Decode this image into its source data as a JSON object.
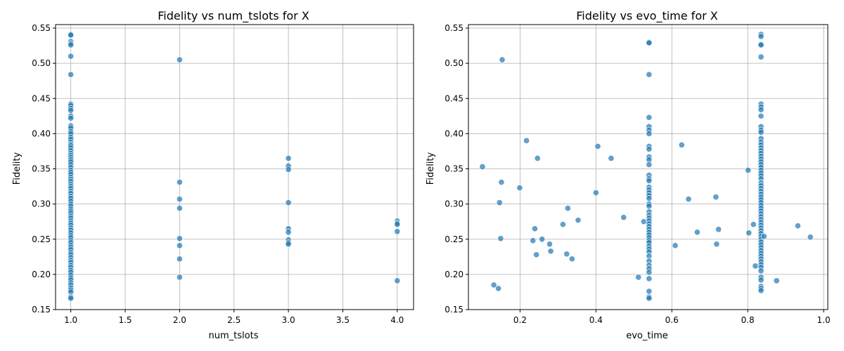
{
  "chart_data": [
    {
      "type": "scatter",
      "title": "Fidelity vs num_tslots for X",
      "xlabel": "num_tslots",
      "ylabel": "Fidelity",
      "xlim": [
        0.86,
        4.15
      ],
      "ylim": [
        0.15,
        0.555
      ],
      "xticks": [
        "1.0",
        "1.5",
        "2.0",
        "2.5",
        "3.0",
        "3.5",
        "4.0"
      ],
      "yticks": [
        "0.15",
        "0.20",
        "0.25",
        "0.30",
        "0.35",
        "0.40",
        "0.45",
        "0.50",
        "0.55"
      ],
      "grid": true,
      "color": "#1f77b4",
      "points": [
        [
          1,
          0.541
        ],
        [
          1,
          0.54
        ],
        [
          1,
          0.531
        ],
        [
          1,
          0.528
        ],
        [
          1,
          0.526
        ],
        [
          1,
          0.51
        ],
        [
          1,
          0.484
        ],
        [
          1,
          0.442
        ],
        [
          1,
          0.44
        ],
        [
          1,
          0.436
        ],
        [
          1,
          0.433
        ],
        [
          1,
          0.425
        ],
        [
          1,
          0.422
        ],
        [
          1,
          0.411
        ],
        [
          1,
          0.408
        ],
        [
          1,
          0.403
        ],
        [
          1,
          0.4
        ],
        [
          1,
          0.395
        ],
        [
          1,
          0.392
        ],
        [
          1,
          0.388
        ],
        [
          1,
          0.385
        ],
        [
          1,
          0.383
        ],
        [
          1,
          0.38
        ],
        [
          1,
          0.376
        ],
        [
          1,
          0.372
        ],
        [
          1,
          0.369
        ],
        [
          1,
          0.366
        ],
        [
          1,
          0.363
        ],
        [
          1,
          0.36
        ],
        [
          1,
          0.356
        ],
        [
          1,
          0.352
        ],
        [
          1,
          0.348
        ],
        [
          1,
          0.345
        ],
        [
          1,
          0.342
        ],
        [
          1,
          0.338
        ],
        [
          1,
          0.335
        ],
        [
          1,
          0.332
        ],
        [
          1,
          0.328
        ],
        [
          1,
          0.325
        ],
        [
          1,
          0.322
        ],
        [
          1,
          0.318
        ],
        [
          1,
          0.315
        ],
        [
          1,
          0.311
        ],
        [
          1,
          0.308
        ],
        [
          1,
          0.304
        ],
        [
          1,
          0.3
        ],
        [
          1,
          0.297
        ],
        [
          1,
          0.293
        ],
        [
          1,
          0.29
        ],
        [
          1,
          0.287
        ],
        [
          1,
          0.283
        ],
        [
          1,
          0.28
        ],
        [
          1,
          0.276
        ],
        [
          1,
          0.273
        ],
        [
          1,
          0.27
        ],
        [
          1,
          0.266
        ],
        [
          1,
          0.263
        ],
        [
          1,
          0.259
        ],
        [
          1,
          0.255
        ],
        [
          1,
          0.252
        ],
        [
          1,
          0.248
        ],
        [
          1,
          0.245
        ],
        [
          1,
          0.241
        ],
        [
          1,
          0.238
        ],
        [
          1,
          0.235
        ],
        [
          1,
          0.231
        ],
        [
          1,
          0.228
        ],
        [
          1,
          0.224
        ],
        [
          1,
          0.22
        ],
        [
          1,
          0.217
        ],
        [
          1,
          0.213
        ],
        [
          1,
          0.21
        ],
        [
          1,
          0.206
        ],
        [
          1,
          0.203
        ],
        [
          1,
          0.199
        ],
        [
          1,
          0.195
        ],
        [
          1,
          0.192
        ],
        [
          1,
          0.188
        ],
        [
          1,
          0.185
        ],
        [
          1,
          0.181
        ],
        [
          1,
          0.178
        ],
        [
          1,
          0.175
        ],
        [
          1,
          0.168
        ],
        [
          1,
          0.166
        ],
        [
          2,
          0.505
        ],
        [
          2,
          0.331
        ],
        [
          2,
          0.307
        ],
        [
          2,
          0.294
        ],
        [
          2,
          0.251
        ],
        [
          2,
          0.241
        ],
        [
          2,
          0.222
        ],
        [
          2,
          0.196
        ],
        [
          3,
          0.365
        ],
        [
          3,
          0.354
        ],
        [
          3,
          0.349
        ],
        [
          3,
          0.302
        ],
        [
          3,
          0.265
        ],
        [
          3,
          0.26
        ],
        [
          3,
          0.249
        ],
        [
          3,
          0.245
        ],
        [
          3,
          0.243
        ],
        [
          4,
          0.276
        ],
        [
          4,
          0.273
        ],
        [
          4,
          0.271
        ],
        [
          4,
          0.261
        ],
        [
          4,
          0.191
        ]
      ]
    },
    {
      "type": "scatter",
      "title": "Fidelity vs evo_time for X",
      "xlabel": "evo_time",
      "ylabel": "Fidelity",
      "xlim": [
        0.064,
        1.011
      ],
      "ylim": [
        0.15,
        0.555
      ],
      "xticks": [
        "0.2",
        "0.4",
        "0.6",
        "0.8",
        "1.0"
      ],
      "yticks": [
        "0.15",
        "0.20",
        "0.25",
        "0.30",
        "0.35",
        "0.40",
        "0.45",
        "0.50",
        "0.55"
      ],
      "grid": true,
      "color": "#1f77b4",
      "points": [
        [
          0.101,
          0.353
        ],
        [
          0.131,
          0.185
        ],
        [
          0.143,
          0.18
        ],
        [
          0.146,
          0.302
        ],
        [
          0.149,
          0.251
        ],
        [
          0.151,
          0.331
        ],
        [
          0.153,
          0.505
        ],
        [
          0.199,
          0.323
        ],
        [
          0.217,
          0.39
        ],
        [
          0.234,
          0.248
        ],
        [
          0.239,
          0.265
        ],
        [
          0.243,
          0.228
        ],
        [
          0.246,
          0.365
        ],
        [
          0.258,
          0.25
        ],
        [
          0.278,
          0.243
        ],
        [
          0.281,
          0.233
        ],
        [
          0.313,
          0.271
        ],
        [
          0.323,
          0.229
        ],
        [
          0.326,
          0.294
        ],
        [
          0.337,
          0.222
        ],
        [
          0.353,
          0.277
        ],
        [
          0.4,
          0.316
        ],
        [
          0.405,
          0.382
        ],
        [
          0.44,
          0.365
        ],
        [
          0.473,
          0.281
        ],
        [
          0.512,
          0.196
        ],
        [
          0.526,
          0.275
        ],
        [
          0.54,
          0.53
        ],
        [
          0.54,
          0.529
        ],
        [
          0.54,
          0.484
        ],
        [
          0.54,
          0.423
        ],
        [
          0.54,
          0.41
        ],
        [
          0.54,
          0.405
        ],
        [
          0.54,
          0.4
        ],
        [
          0.54,
          0.382
        ],
        [
          0.54,
          0.378
        ],
        [
          0.54,
          0.367
        ],
        [
          0.54,
          0.363
        ],
        [
          0.54,
          0.356
        ],
        [
          0.54,
          0.341
        ],
        [
          0.54,
          0.336
        ],
        [
          0.54,
          0.333
        ],
        [
          0.54,
          0.324
        ],
        [
          0.54,
          0.32
        ],
        [
          0.54,
          0.316
        ],
        [
          0.54,
          0.312
        ],
        [
          0.54,
          0.308
        ],
        [
          0.54,
          0.3
        ],
        [
          0.54,
          0.297
        ],
        [
          0.54,
          0.289
        ],
        [
          0.54,
          0.284
        ],
        [
          0.54,
          0.28
        ],
        [
          0.54,
          0.276
        ],
        [
          0.54,
          0.272
        ],
        [
          0.54,
          0.268
        ],
        [
          0.54,
          0.264
        ],
        [
          0.54,
          0.26
        ],
        [
          0.54,
          0.256
        ],
        [
          0.54,
          0.252
        ],
        [
          0.54,
          0.248
        ],
        [
          0.54,
          0.245
        ],
        [
          0.54,
          0.24
        ],
        [
          0.54,
          0.236
        ],
        [
          0.54,
          0.232
        ],
        [
          0.54,
          0.226
        ],
        [
          0.54,
          0.219
        ],
        [
          0.54,
          0.213
        ],
        [
          0.54,
          0.208
        ],
        [
          0.54,
          0.203
        ],
        [
          0.54,
          0.194
        ],
        [
          0.54,
          0.176
        ],
        [
          0.54,
          0.168
        ],
        [
          0.54,
          0.166
        ],
        [
          0.609,
          0.241
        ],
        [
          0.626,
          0.384
        ],
        [
          0.644,
          0.307
        ],
        [
          0.667,
          0.26
        ],
        [
          0.716,
          0.31
        ],
        [
          0.718,
          0.243
        ],
        [
          0.723,
          0.264
        ],
        [
          0.801,
          0.348
        ],
        [
          0.803,
          0.259
        ],
        [
          0.815,
          0.271
        ],
        [
          0.82,
          0.212
        ],
        [
          0.835,
          0.541
        ],
        [
          0.835,
          0.538
        ],
        [
          0.835,
          0.527
        ],
        [
          0.835,
          0.526
        ],
        [
          0.835,
          0.509
        ],
        [
          0.835,
          0.442
        ],
        [
          0.835,
          0.438
        ],
        [
          0.835,
          0.434
        ],
        [
          0.835,
          0.425
        ],
        [
          0.835,
          0.41
        ],
        [
          0.835,
          0.405
        ],
        [
          0.835,
          0.402
        ],
        [
          0.835,
          0.393
        ],
        [
          0.835,
          0.388
        ],
        [
          0.835,
          0.384
        ],
        [
          0.835,
          0.38
        ],
        [
          0.835,
          0.376
        ],
        [
          0.835,
          0.372
        ],
        [
          0.835,
          0.368
        ],
        [
          0.835,
          0.364
        ],
        [
          0.835,
          0.36
        ],
        [
          0.835,
          0.356
        ],
        [
          0.835,
          0.352
        ],
        [
          0.835,
          0.348
        ],
        [
          0.835,
          0.344
        ],
        [
          0.835,
          0.34
        ],
        [
          0.835,
          0.336
        ],
        [
          0.835,
          0.33
        ],
        [
          0.835,
          0.326
        ],
        [
          0.835,
          0.322
        ],
        [
          0.835,
          0.318
        ],
        [
          0.835,
          0.314
        ],
        [
          0.835,
          0.31
        ],
        [
          0.835,
          0.306
        ],
        [
          0.835,
          0.302
        ],
        [
          0.835,
          0.298
        ],
        [
          0.835,
          0.294
        ],
        [
          0.835,
          0.29
        ],
        [
          0.835,
          0.286
        ],
        [
          0.835,
          0.282
        ],
        [
          0.835,
          0.278
        ],
        [
          0.835,
          0.274
        ],
        [
          0.835,
          0.27
        ],
        [
          0.835,
          0.266
        ],
        [
          0.835,
          0.262
        ],
        [
          0.835,
          0.258
        ],
        [
          0.835,
          0.254
        ],
        [
          0.835,
          0.25
        ],
        [
          0.835,
          0.246
        ],
        [
          0.835,
          0.242
        ],
        [
          0.835,
          0.238
        ],
        [
          0.835,
          0.234
        ],
        [
          0.835,
          0.23
        ],
        [
          0.835,
          0.226
        ],
        [
          0.835,
          0.222
        ],
        [
          0.835,
          0.218
        ],
        [
          0.835,
          0.214
        ],
        [
          0.835,
          0.21
        ],
        [
          0.835,
          0.205
        ],
        [
          0.835,
          0.196
        ],
        [
          0.835,
          0.192
        ],
        [
          0.835,
          0.183
        ],
        [
          0.835,
          0.18
        ],
        [
          0.835,
          0.177
        ],
        [
          0.843,
          0.254
        ],
        [
          0.876,
          0.191
        ],
        [
          0.932,
          0.269
        ],
        [
          0.965,
          0.253
        ]
      ]
    }
  ]
}
